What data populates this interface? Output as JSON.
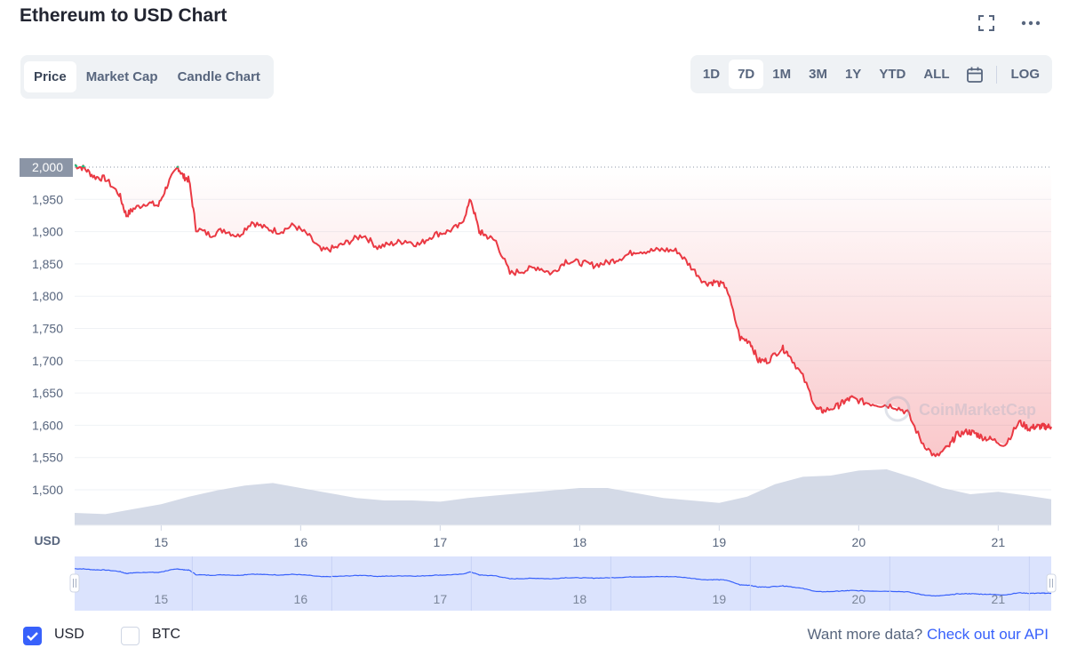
{
  "header": {
    "title": "Ethereum to USD Chart"
  },
  "view_tabs": [
    {
      "label": "Price",
      "active": true
    },
    {
      "label": "Market Cap",
      "active": false
    },
    {
      "label": "Candle Chart",
      "active": false
    }
  ],
  "range_tabs": [
    {
      "label": "1D",
      "active": false
    },
    {
      "label": "7D",
      "active": true
    },
    {
      "label": "1M",
      "active": false
    },
    {
      "label": "3M",
      "active": false
    },
    {
      "label": "1Y",
      "active": false
    },
    {
      "label": "YTD",
      "active": false
    },
    {
      "label": "ALL",
      "active": false
    }
  ],
  "scale_toggle": "LOG",
  "watermark": "CoinMarketCap",
  "footer": {
    "usd_label": "USD",
    "btc_label": "BTC",
    "usd_checked": true,
    "btc_checked": false,
    "more_data_text": "Want more data?",
    "api_link_text": "Check out our API"
  },
  "colors": {
    "price_down": "#ea3943",
    "price_up": "#16c784",
    "volume": "#cfd6e4",
    "navigator_line": "#3861fb",
    "navigator_fill": "#dbe3fd"
  },
  "chart_data": {
    "type": "line",
    "ylabel": "USD",
    "y_ticks": [
      "2,000",
      "1,950",
      "1,900",
      "1,850",
      "1,800",
      "1,750",
      "1,700",
      "1,650",
      "1,600",
      "1,550",
      "1,500"
    ],
    "ylim": [
      1445,
      2055
    ],
    "reference_price": 2000,
    "x_ticks": [
      "15",
      "16",
      "17",
      "18",
      "19",
      "20",
      "21"
    ],
    "xlim": [
      14.38,
      21.38
    ],
    "price_series": {
      "x": [
        14.38,
        14.45,
        14.52,
        14.6,
        14.7,
        14.75,
        14.8,
        14.9,
        14.98,
        15.05,
        15.12,
        15.16,
        15.2,
        15.25,
        15.35,
        15.45,
        15.55,
        15.65,
        15.75,
        15.85,
        15.95,
        16.05,
        16.15,
        16.25,
        16.35,
        16.45,
        16.55,
        16.65,
        16.75,
        16.85,
        16.95,
        17.05,
        17.15,
        17.22,
        17.28,
        17.32,
        17.4,
        17.5,
        17.6,
        17.7,
        17.8,
        17.9,
        18.0,
        18.1,
        18.2,
        18.3,
        18.4,
        18.5,
        18.6,
        18.7,
        18.8,
        18.9,
        18.97,
        19.05,
        19.15,
        19.22,
        19.28,
        19.35,
        19.45,
        19.5,
        19.6,
        19.7,
        19.75,
        19.85,
        19.9,
        19.95,
        20.05,
        20.15,
        20.25,
        20.35,
        20.45,
        20.55,
        20.65,
        20.7,
        20.78,
        20.83,
        20.88,
        20.95,
        21.05,
        21.15,
        21.22,
        21.27,
        21.31,
        21.34,
        21.38
      ],
      "y": [
        2003,
        1998,
        1985,
        1982,
        1958,
        1925,
        1935,
        1945,
        1940,
        1975,
        2000,
        1985,
        1980,
        1905,
        1895,
        1903,
        1893,
        1915,
        1905,
        1900,
        1910,
        1895,
        1870,
        1875,
        1885,
        1895,
        1876,
        1881,
        1886,
        1880,
        1895,
        1900,
        1910,
        1950,
        1900,
        1895,
        1885,
        1835,
        1840,
        1845,
        1835,
        1855,
        1852,
        1848,
        1852,
        1860,
        1870,
        1870,
        1872,
        1870,
        1845,
        1820,
        1822,
        1815,
        1735,
        1730,
        1700,
        1700,
        1720,
        1710,
        1675,
        1625,
        1622,
        1630,
        1637,
        1642,
        1635,
        1632,
        1630,
        1620,
        1575,
        1550,
        1568,
        1585,
        1590,
        1588,
        1582,
        1578,
        1570,
        1605,
        1595,
        1598,
        1598,
        1598,
        1598
      ]
    },
    "volume_series": {
      "x": [
        14.38,
        14.6,
        14.8,
        15.0,
        15.2,
        15.4,
        15.6,
        15.8,
        16.0,
        16.2,
        16.4,
        16.6,
        16.8,
        17.0,
        17.2,
        17.4,
        17.6,
        17.8,
        18.0,
        18.2,
        18.4,
        18.6,
        18.8,
        19.0,
        19.2,
        19.4,
        19.6,
        19.8,
        20.0,
        20.2,
        20.4,
        20.6,
        20.8,
        21.0,
        21.2,
        21.38
      ],
      "y": [
        1.0,
        0.9,
        1.3,
        1.7,
        2.3,
        2.8,
        3.2,
        3.4,
        3.0,
        2.6,
        2.2,
        2.0,
        2.0,
        1.9,
        2.2,
        2.4,
        2.6,
        2.8,
        3.0,
        3.0,
        2.6,
        2.2,
        2.0,
        1.8,
        2.3,
        3.3,
        3.9,
        4.0,
        4.4,
        4.5,
        3.8,
        3.0,
        2.5,
        2.7,
        2.4,
        2.1
      ]
    },
    "navigator": {
      "x_ticks": [
        "15",
        "16",
        "17",
        "18",
        "19",
        "20",
        "21"
      ]
    }
  }
}
